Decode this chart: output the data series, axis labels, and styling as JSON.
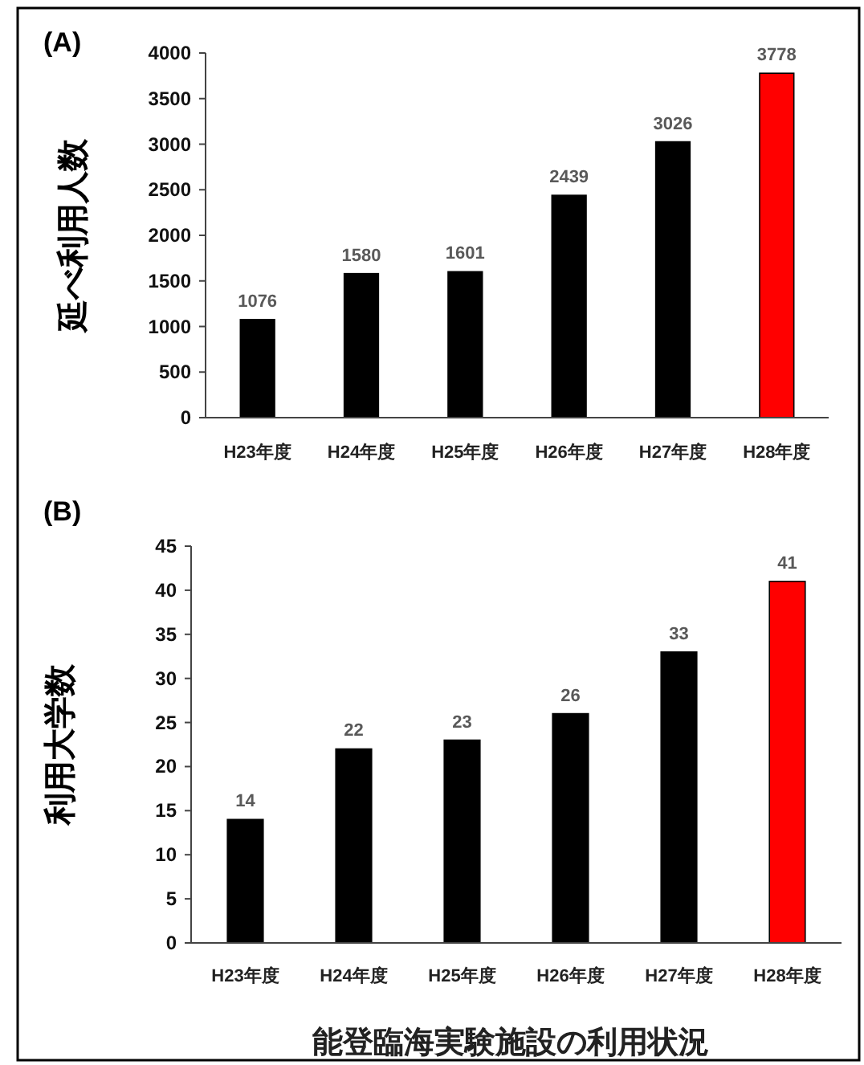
{
  "chart_data": [
    {
      "type": "bar",
      "title": "(A)",
      "ylabel": "延べ利用人数",
      "categories": [
        "H23年度",
        "H24年度",
        "H25年度",
        "H26年度",
        "H27年度",
        "H28年度"
      ],
      "values": [
        1076,
        1580,
        1601,
        2439,
        3026,
        3778
      ],
      "colors": [
        "#000000",
        "#000000",
        "#000000",
        "#000000",
        "#000000",
        "#ff0000"
      ],
      "ylim": [
        0,
        4000
      ],
      "yticks": [
        0,
        500,
        1000,
        1500,
        2000,
        2500,
        3000,
        3500,
        4000
      ],
      "data_labels": true
    },
    {
      "type": "bar",
      "title": "(B)",
      "ylabel": "利用大学数",
      "categories": [
        "H23年度",
        "H24年度",
        "H25年度",
        "H26年度",
        "H27年度",
        "H28年度"
      ],
      "values": [
        14,
        22,
        23,
        26,
        33,
        41
      ],
      "colors": [
        "#000000",
        "#000000",
        "#000000",
        "#000000",
        "#000000",
        "#ff0000"
      ],
      "ylim": [
        0,
        45
      ],
      "yticks": [
        0,
        5,
        10,
        15,
        20,
        25,
        30,
        35,
        40,
        45
      ],
      "data_labels": true,
      "annotations": [
        "能登臨海実験施設の利用状況"
      ]
    }
  ]
}
